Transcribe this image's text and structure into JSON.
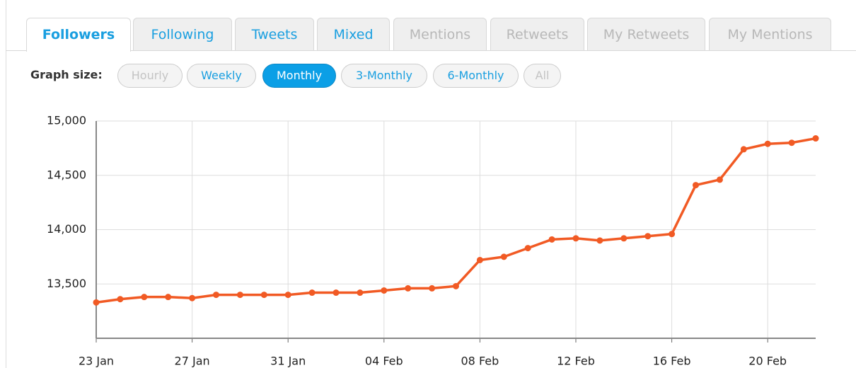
{
  "tabs": [
    {
      "label": "Followers",
      "state": "active"
    },
    {
      "label": "Following",
      "state": "enabled"
    },
    {
      "label": "Tweets",
      "state": "enabled"
    },
    {
      "label": "Mixed",
      "state": "enabled"
    },
    {
      "label": "Mentions",
      "state": "disabled"
    },
    {
      "label": "Retweets",
      "state": "disabled"
    },
    {
      "label": "My Retweets",
      "state": "disabled"
    },
    {
      "label": "My Mentions",
      "state": "disabled"
    }
  ],
  "graph_size": {
    "label": "Graph size:",
    "buttons": [
      {
        "label": "Hourly",
        "state": "disabled"
      },
      {
        "label": "Weekly",
        "state": "enabled"
      },
      {
        "label": "Monthly",
        "state": "active"
      },
      {
        "label": "3-Monthly",
        "state": "enabled"
      },
      {
        "label": "6-Monthly",
        "state": "enabled"
      },
      {
        "label": "All",
        "state": "disabled"
      }
    ]
  },
  "chart_data": {
    "type": "line",
    "categories": [
      "23 Jan",
      null,
      null,
      null,
      "27 Jan",
      null,
      null,
      null,
      "31 Jan",
      null,
      null,
      null,
      "04 Feb",
      null,
      null,
      null,
      "08 Feb",
      null,
      null,
      null,
      "12 Feb",
      null,
      null,
      null,
      "16 Feb",
      null,
      null,
      null,
      "20 Feb",
      null,
      null
    ],
    "series": [
      {
        "name": "Followers",
        "color": "#f15a24",
        "values": [
          13330,
          13360,
          13380,
          13380,
          13370,
          13400,
          13400,
          13400,
          13400,
          13420,
          13420,
          13420,
          13440,
          13460,
          13460,
          13480,
          13720,
          13750,
          13830,
          13910,
          13920,
          13900,
          13920,
          13940,
          13960,
          14410,
          14460,
          14740,
          14790,
          14800,
          14840
        ]
      }
    ],
    "ylim": [
      13000,
      15000
    ],
    "yticks": [
      {
        "value": 13500,
        "label": "13,500"
      },
      {
        "value": 14000,
        "label": "14,000"
      },
      {
        "value": 14500,
        "label": "14,500"
      },
      {
        "value": 15000,
        "label": "15,000"
      }
    ],
    "grid": true
  }
}
